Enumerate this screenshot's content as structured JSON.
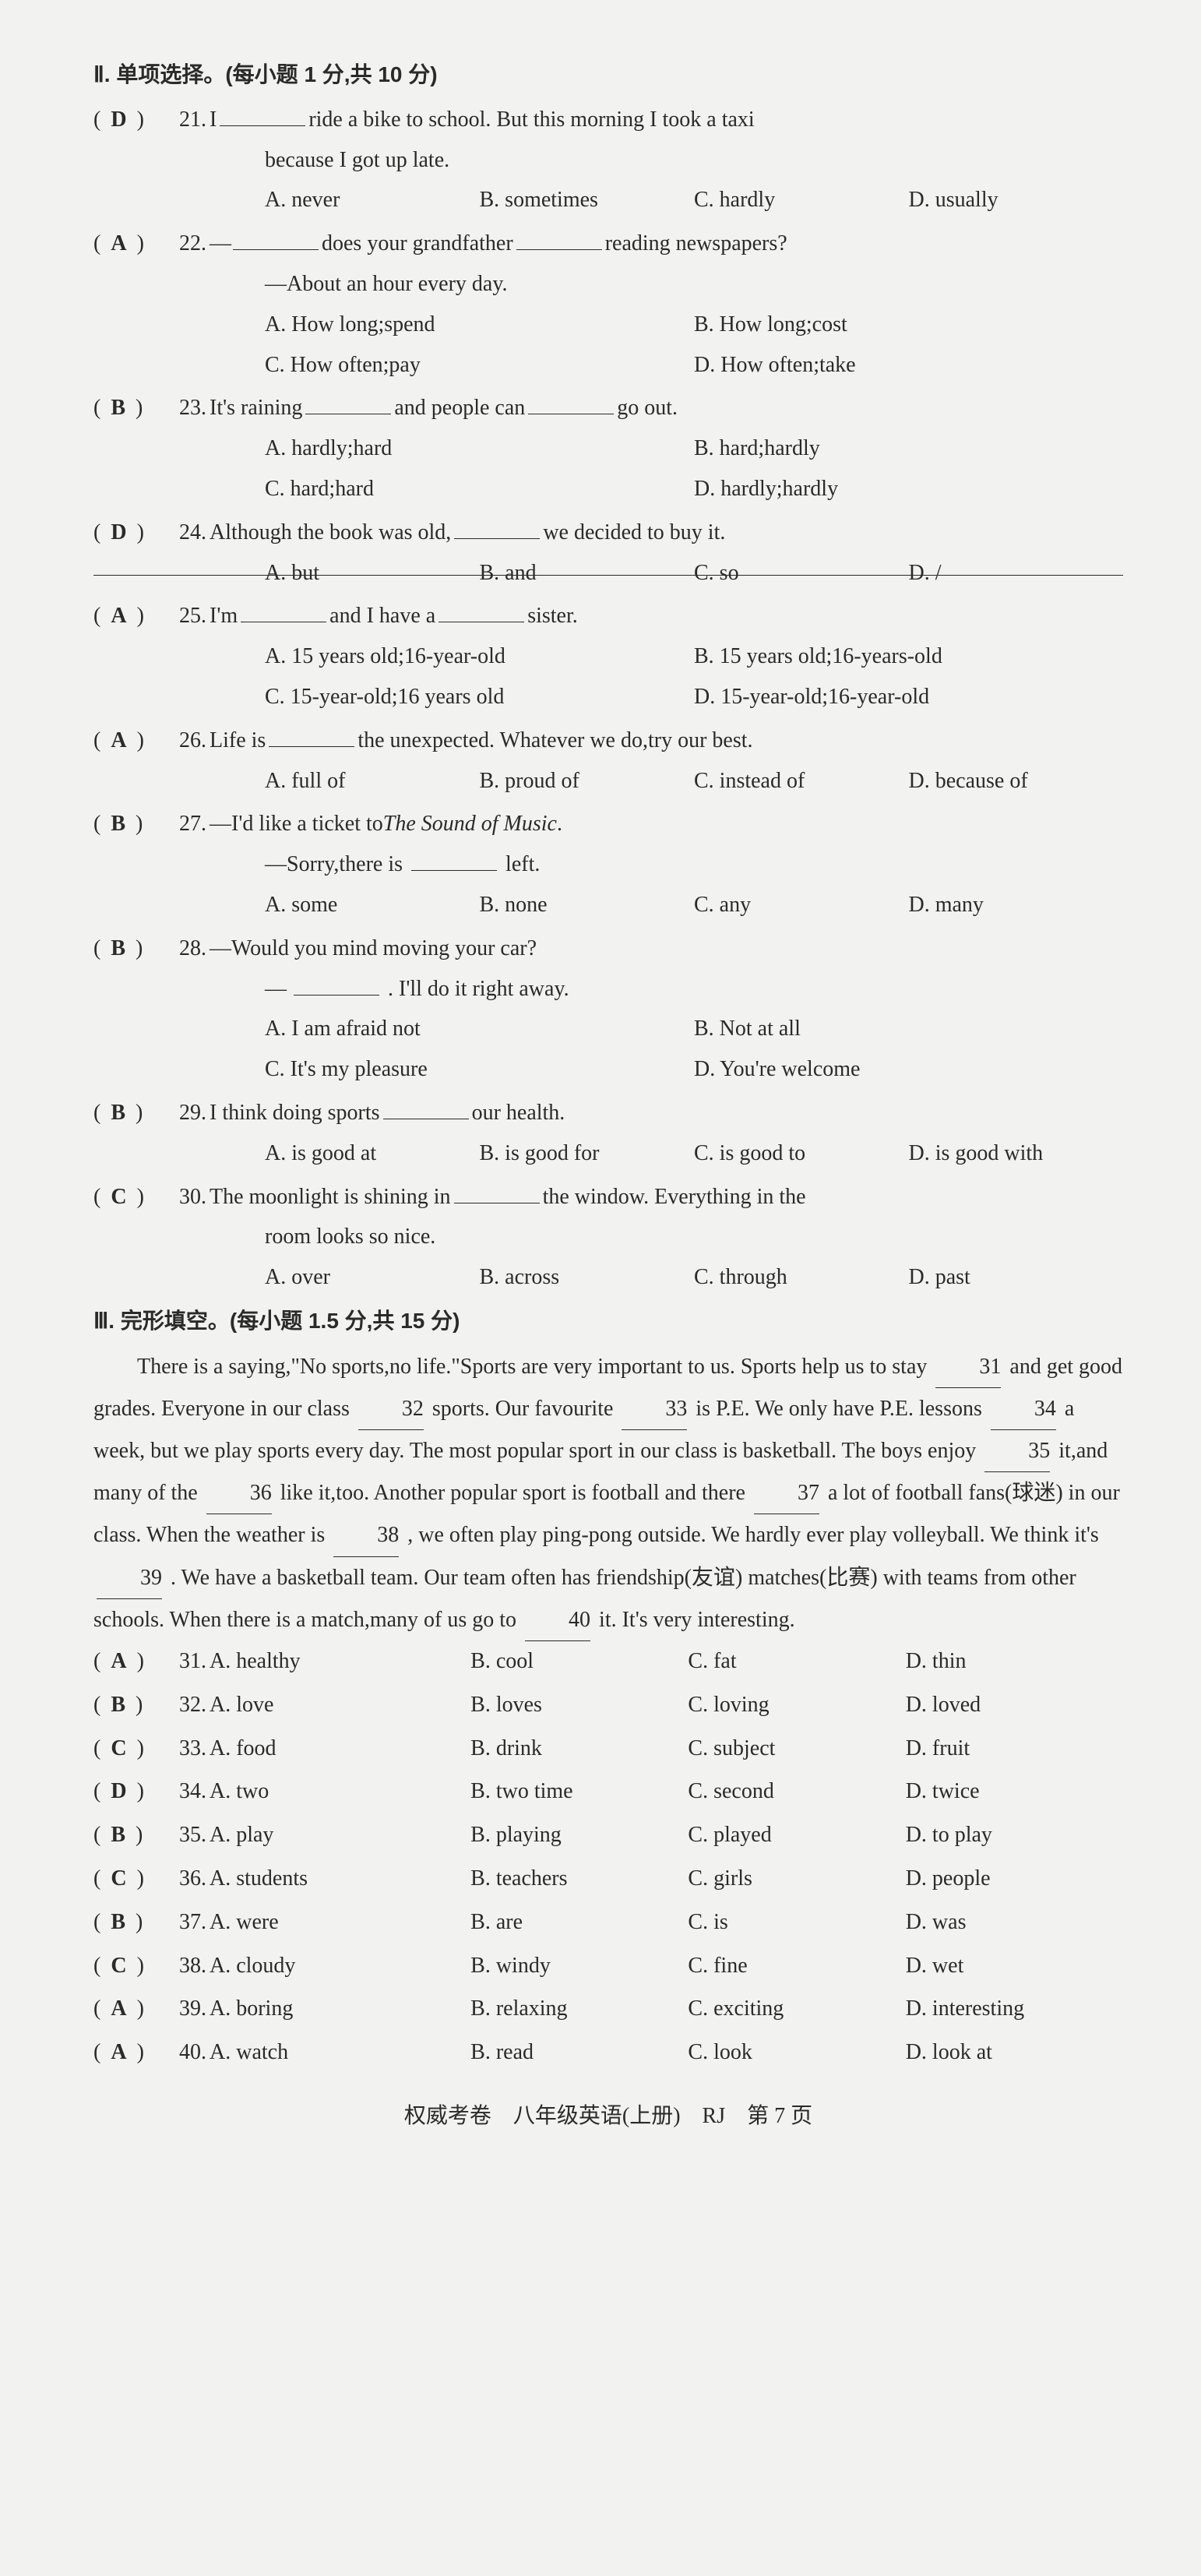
{
  "section2": {
    "title": "Ⅱ. 单项选择。(每小题 1 分,共 10 分)",
    "questions": [
      {
        "num": "21",
        "answer": "D",
        "stem1_pre": "I ",
        "stem1_post": " ride a bike to school. But this morning I took a taxi",
        "stem2": "because I got up late.",
        "opts": [
          "A. never",
          "B. sometimes",
          "C. hardly",
          "D. usually"
        ],
        "cols": 4
      },
      {
        "num": "22",
        "answer": "A",
        "stem1_pre": "—",
        "stem1_mid": " does your grandfather ",
        "stem1_post": " reading newspapers?",
        "stem2": "—About an hour every day.",
        "opts": [
          "A. How long;spend",
          "B. How long;cost",
          "C. How often;pay",
          "D. How often;take"
        ],
        "cols": 2
      },
      {
        "num": "23",
        "answer": "B",
        "stem1_pre": "It's raining ",
        "stem1_mid": " and people can ",
        "stem1_post": " go out.",
        "opts": [
          "A. hardly;hard",
          "B. hard;hardly",
          "C. hard;hard",
          "D. hardly;hardly"
        ],
        "cols": 2
      },
      {
        "num": "24",
        "answer": "D",
        "stem1_pre": "Although the book was old, ",
        "stem1_post": " we decided to buy it.",
        "opts": [
          "A. but",
          "B. and",
          "C. so",
          "D. /"
        ],
        "cols": 4,
        "strike": true
      },
      {
        "num": "25",
        "answer": "A",
        "stem1_pre": "I'm ",
        "stem1_mid": " and I have a ",
        "stem1_post": " sister.",
        "opts": [
          "A. 15 years old;16-year-old",
          "B. 15 years old;16-years-old",
          "C. 15-year-old;16 years old",
          "D. 15-year-old;16-year-old"
        ],
        "cols": 2
      },
      {
        "num": "26",
        "answer": "A",
        "stem1_pre": "Life is ",
        "stem1_post": " the unexpected. Whatever we do,try our best.",
        "opts": [
          "A. full of",
          "B. proud of",
          "C. instead of",
          "D. because of"
        ],
        "cols": 4
      },
      {
        "num": "27",
        "answer": "B",
        "stem1_pre": "—I'd like a ticket to ",
        "stem1_italic": "The Sound of Music",
        "stem1_post": ".",
        "stem2_pre": "—Sorry,there is ",
        "stem2_post": " left.",
        "opts": [
          "A. some",
          "B. none",
          "C. any",
          "D. many"
        ],
        "cols": 4
      },
      {
        "num": "28",
        "answer": "B",
        "stem1": "—Would you mind moving your car?",
        "stem2_pre": "—",
        "stem2_post": ". I'll do it right away.",
        "opts": [
          "A. I am afraid not",
          "B. Not at all",
          "C. It's my pleasure",
          "D. You're welcome"
        ],
        "cols": 2
      },
      {
        "num": "29",
        "answer": "B",
        "stem1_pre": "I think doing sports ",
        "stem1_post": " our health.",
        "opts": [
          "A. is good at",
          "B. is good for",
          "C. is good to",
          "D. is good with"
        ],
        "cols": 4
      },
      {
        "num": "30",
        "answer": "C",
        "stem1_pre": "The moonlight is shining in ",
        "stem1_post": " the window. Everything in the",
        "stem2": "room looks so nice.",
        "opts": [
          "A. over",
          "B. across",
          "C. through",
          "D. past"
        ],
        "cols": 4
      }
    ]
  },
  "section3": {
    "title": "Ⅲ. 完形填空。(每小题 1.5 分,共 15 分)",
    "passage_parts": {
      "p1": "There is a saying,\"No sports,no life.\"Sports are very important to us. Sports help us to stay ",
      "b31": "31",
      "p2": " and get good grades. Everyone in our class ",
      "b32": "32",
      "p3": " sports. Our favourite ",
      "b33": "33",
      "p4": " is P.E. We only have P.E. lessons ",
      "b34": "34",
      "p5": " a week, but we play sports every day. The most popular sport in our class is basketball. The boys enjoy ",
      "b35": "35",
      "p6": " it,and many of the ",
      "b36": "36",
      "p7": " like it,too. Another popular sport is football and there ",
      "b37": "37",
      "p8": " a lot of football fans(球迷) in our class. When the weather is ",
      "b38": "38",
      "p9": " , we often play ping-pong outside. We hardly ever play volleyball. We think it's ",
      "b39": "39",
      "p10": " . We have a basketball team. Our team often has friendship(友谊) matches(比赛) with teams from other schools. When there is a match,many of us go to ",
      "b40": "40",
      "p11": " it. It's very interesting."
    },
    "cloze_options": [
      {
        "num": "31",
        "answer": "A",
        "opts": [
          "A. healthy",
          "B. cool",
          "C. fat",
          "D. thin"
        ]
      },
      {
        "num": "32",
        "answer": "B",
        "opts": [
          "A. love",
          "B. loves",
          "C. loving",
          "D. loved"
        ]
      },
      {
        "num": "33",
        "answer": "C",
        "opts": [
          "A. food",
          "B. drink",
          "C. subject",
          "D. fruit"
        ]
      },
      {
        "num": "34",
        "answer": "D",
        "opts": [
          "A. two",
          "B. two time",
          "C. second",
          "D. twice"
        ]
      },
      {
        "num": "35",
        "answer": "B",
        "opts": [
          "A. play",
          "B. playing",
          "C. played",
          "D. to play"
        ]
      },
      {
        "num": "36",
        "answer": "C",
        "opts": [
          "A. students",
          "B. teachers",
          "C. girls",
          "D. people"
        ]
      },
      {
        "num": "37",
        "answer": "B",
        "opts": [
          "A. were",
          "B. are",
          "C. is",
          "D. was"
        ]
      },
      {
        "num": "38",
        "answer": "C",
        "opts": [
          "A. cloudy",
          "B. windy",
          "C. fine",
          "D. wet"
        ]
      },
      {
        "num": "39",
        "answer": "A",
        "opts": [
          "A. boring",
          "B. relaxing",
          "C. exciting",
          "D. interesting"
        ]
      },
      {
        "num": "40",
        "answer": "A",
        "opts": [
          "A. watch",
          "B. read",
          "C. look",
          "D. look at"
        ]
      }
    ]
  },
  "footer": {
    "text": "权威考卷　八年级英语(上册)　RJ　第 7 页"
  }
}
